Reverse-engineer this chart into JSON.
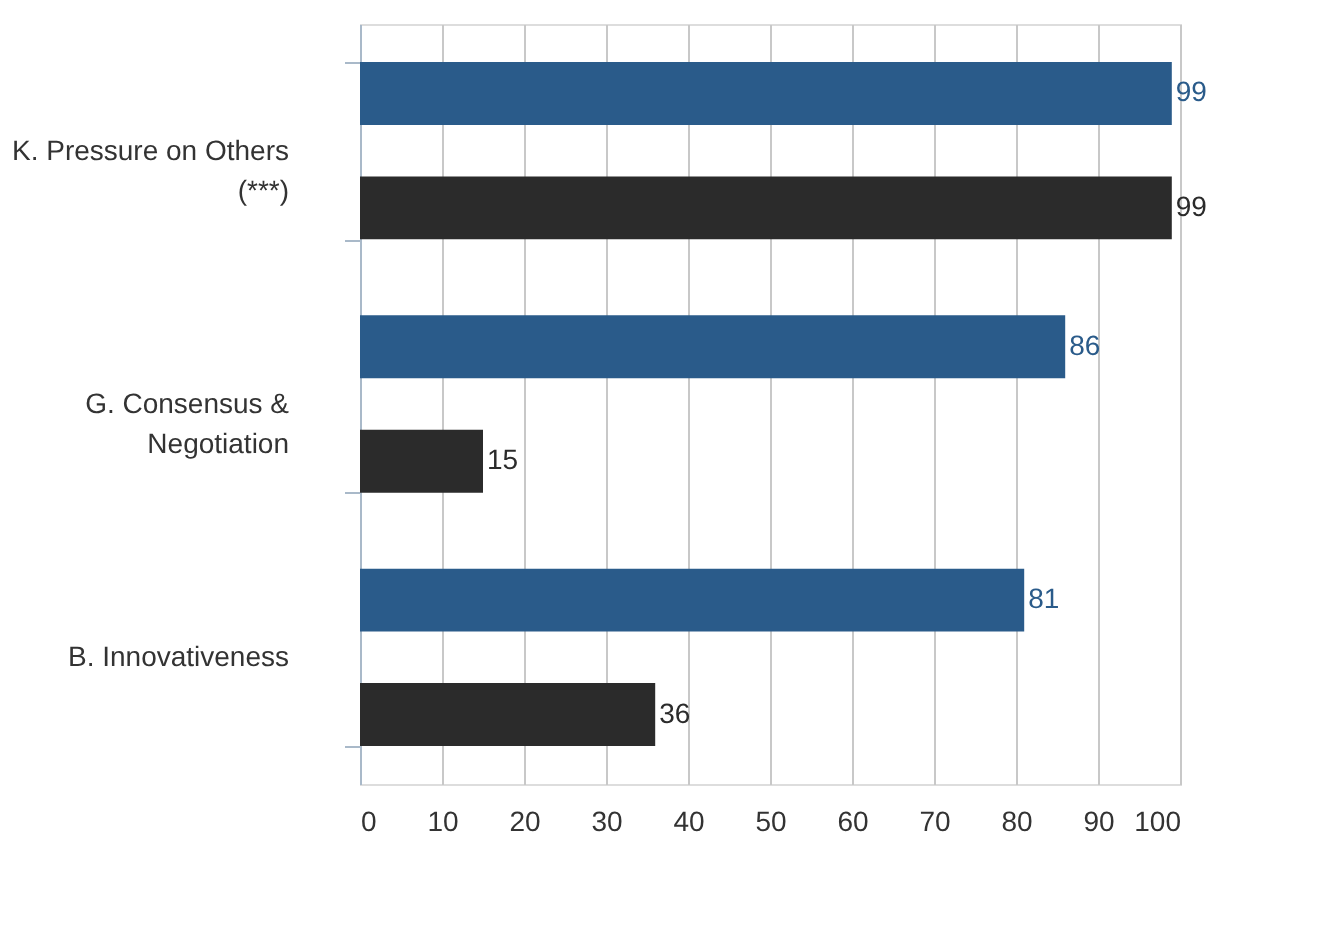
{
  "chart_data": {
    "type": "bar",
    "orientation": "horizontal",
    "categories": [
      "K. Pressure on Others (***)",
      "G. Consensus & Negotiation",
      "B. Innovativeness"
    ],
    "series": [
      {
        "color": "#2a5b8a",
        "values": [
          99,
          86,
          81
        ]
      },
      {
        "color": "#2b2b2b",
        "values": [
          99,
          15,
          36
        ]
      }
    ],
    "xlim": [
      0,
      100
    ],
    "xticks": [
      0,
      10,
      20,
      30,
      40,
      50,
      60,
      70,
      80,
      90,
      100
    ],
    "grid": "x",
    "data_labels": true
  }
}
